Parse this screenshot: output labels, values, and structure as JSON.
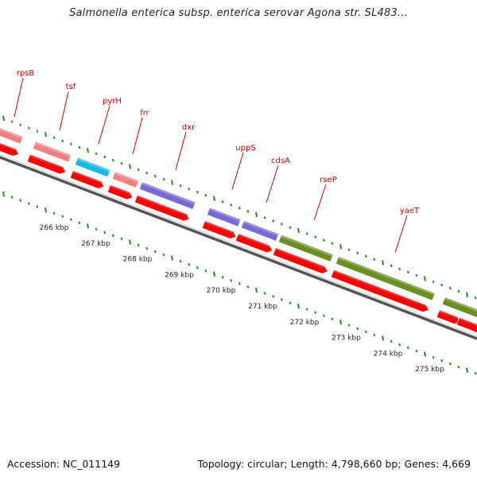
{
  "title": "Salmonella enterica subsp. enterica serovar Agona str. SL483...",
  "footer": {
    "accession": "Accession: NC_011149",
    "summary": "Topology: circular; Length: 4,798,660 bp; Genes: 4,669"
  },
  "genes": [
    {
      "name": "rpsB",
      "color": "#f08080"
    },
    {
      "name": "tsf",
      "color": "#f08080"
    },
    {
      "name": "pyrH",
      "color": "#1ab8e8"
    },
    {
      "name": "frr",
      "color": "#f08080"
    },
    {
      "name": "dxr",
      "color": "#7b68d4"
    },
    {
      "name": "uppS",
      "color": "#7b68d4"
    },
    {
      "name": "cdsA",
      "color": "#7b68d4"
    },
    {
      "name": "rseP",
      "color": "#6b8e23"
    },
    {
      "name": "yaeT",
      "color": "#6b8e23"
    }
  ],
  "kbp_ticks": [
    "266 kbp",
    "267 kbp",
    "268 kbp",
    "269 kbp",
    "270 kbp",
    "271 kbp",
    "272 kbp",
    "273 kbp",
    "274 kbp",
    "275 kbp"
  ],
  "colors": {
    "cds_arrow": "#ff0000",
    "backbone": "#888888",
    "tick": "#228b22",
    "label": "#cc0000"
  }
}
